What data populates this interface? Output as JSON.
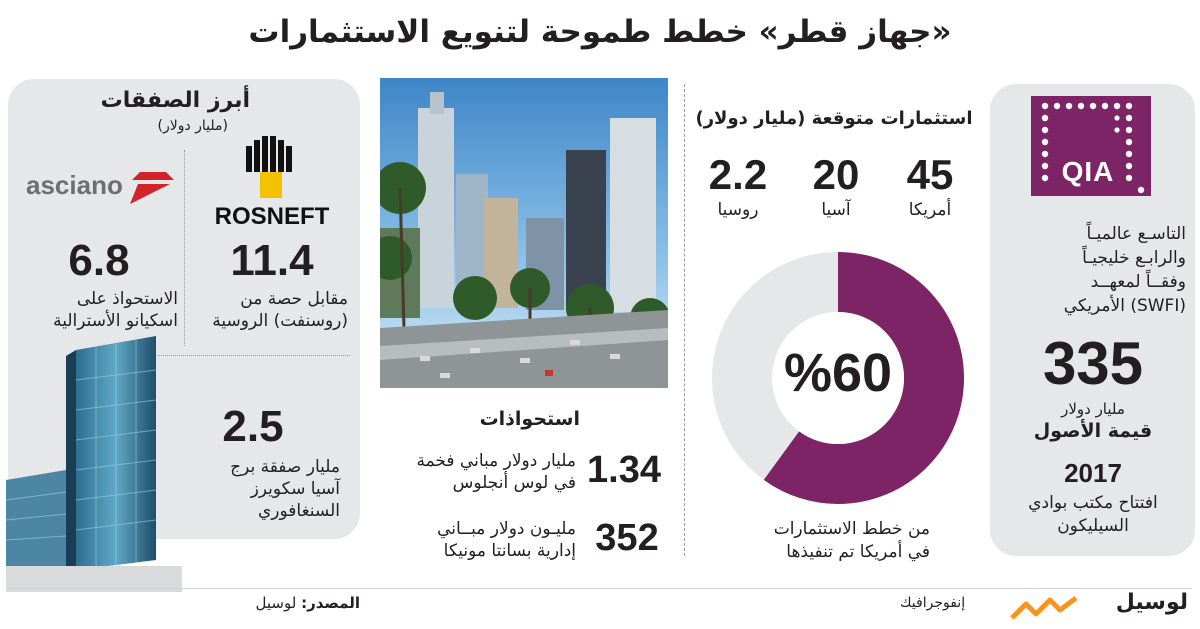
{
  "title": "«جهاز قطر» خطط طموحة لتنويع الاستثمارات",
  "qia_panel": {
    "logo_text": "QIA",
    "ranking_lines": [
      "التاسـع عالميـاً",
      "والرابـع خليجيـاً",
      "وفقــاً لمعهــد",
      "(SWFI) الأمريكي"
    ],
    "assets_value": "335",
    "assets_unit": "مليار دولار",
    "assets_label": "قيمة الأصول",
    "year": "2017",
    "year_desc_1": "افتتاح مكتب بوادي",
    "year_desc_2": "السيليكون"
  },
  "investments": {
    "heading": "استثمارات متوقعة (مليار دولار)",
    "items": [
      {
        "value": "45",
        "region": "أمريكا"
      },
      {
        "value": "20",
        "region": "آسيا"
      },
      {
        "value": "2.2",
        "region": "روسيا"
      }
    ],
    "donut_label": "%60",
    "donut_fraction": 0.6,
    "caption_1": "من خطط الاستثمارات",
    "caption_2": "في أمريكا تم تنفيذها",
    "colors": {
      "accent": "#7d2466",
      "track": "#e6e7e8"
    }
  },
  "acquisitions": {
    "heading": "استحواذات",
    "items": [
      {
        "value": "1.34",
        "desc_1": "مليار دولار مباني فخمة",
        "desc_2": "في لوس أنجلوس"
      },
      {
        "value": "352",
        "desc_1": "مليـون دولار مبــاني",
        "desc_2": "إدارية بسانتا مونيكا"
      }
    ]
  },
  "deals": {
    "heading": "أبرز الصفقات",
    "subheading": "(مليار دولار)",
    "rosneft": {
      "logo_text": "ROSNEFT",
      "value": "11.4",
      "desc_1": "مقابل حصة من",
      "desc_2": "(روسنفت) الروسية"
    },
    "asciano": {
      "logo_text": "asciano",
      "value": "6.8",
      "desc_1": "الاستحواذ على",
      "desc_2": "اسكيانو الأسترالية"
    },
    "tower": {
      "value": "2.5",
      "desc_1": "مليار صفقة برج",
      "desc_2": "آسيا سكويرز",
      "desc_3": "السنغافوري"
    }
  },
  "footer": {
    "source_label": "المصدر:",
    "source_value": "لوسيل",
    "brand": "لوسيل",
    "tagline": "إنفوجرافيك"
  }
}
